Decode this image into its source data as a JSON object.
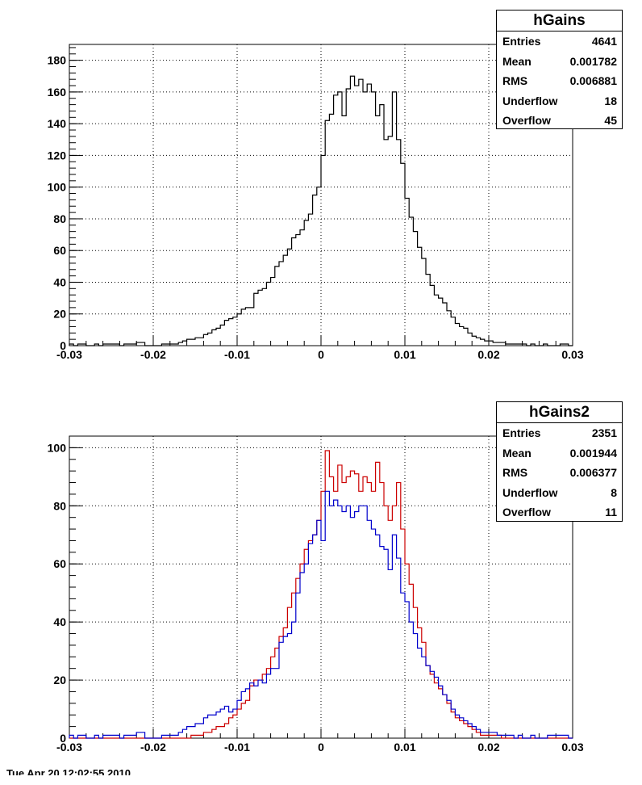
{
  "chart_data": [
    {
      "type": "histogram",
      "title": "",
      "xlabel": "",
      "ylabel": "",
      "xlim": [
        -0.03,
        0.03
      ],
      "ylim": [
        0,
        190
      ],
      "grid": true,
      "x_ticks": [
        "-0.03",
        "-0.02",
        "-0.01",
        "0",
        "0.01",
        "0.02",
        "0.03"
      ],
      "y_ticks": [
        "0",
        "20",
        "40",
        "60",
        "80",
        "100",
        "120",
        "140",
        "160",
        "180"
      ],
      "bins": 120,
      "series": [
        {
          "color": "#000000",
          "values": [
            1,
            0,
            1,
            1,
            0,
            0,
            1,
            0,
            1,
            1,
            1,
            1,
            0,
            1,
            1,
            1,
            2,
            2,
            0,
            0,
            0,
            0,
            1,
            1,
            1,
            1,
            2,
            3,
            4,
            4,
            5,
            5,
            7,
            8,
            10,
            11,
            13,
            16,
            17,
            18,
            20,
            23,
            24,
            24,
            33,
            35,
            36,
            40,
            43,
            50,
            53,
            57,
            61,
            68,
            70,
            73,
            79,
            83,
            95,
            100,
            120,
            142,
            146,
            158,
            160,
            145,
            162,
            170,
            164,
            168,
            160,
            165,
            160,
            145,
            152,
            130,
            132,
            160,
            130,
            115,
            93,
            81,
            72,
            62,
            55,
            45,
            38,
            32,
            30,
            27,
            22,
            18,
            14,
            12,
            11,
            8,
            6,
            5,
            4,
            3,
            3,
            2,
            2,
            2,
            1,
            1,
            1,
            1,
            1,
            0,
            1,
            0,
            0,
            1,
            0,
            0,
            0,
            1,
            1,
            0
          ]
        }
      ],
      "stats": {
        "title": "hGains",
        "rows": [
          {
            "label": "Entries",
            "value": "4641"
          },
          {
            "label": "Mean",
            "value": "0.001782"
          },
          {
            "label": "RMS",
            "value": "0.006881"
          },
          {
            "label": "Underflow",
            "value": "18"
          },
          {
            "label": "Overflow",
            "value": "45"
          }
        ]
      }
    },
    {
      "type": "histogram",
      "title": "",
      "xlabel": "",
      "ylabel": "",
      "xlim": [
        -0.03,
        0.03
      ],
      "ylim": [
        0,
        104
      ],
      "grid": true,
      "x_ticks": [
        "-0.03",
        "-0.02",
        "-0.01",
        "0",
        "0.01",
        "0.02",
        "0.03"
      ],
      "y_ticks": [
        "0",
        "20",
        "40",
        "60",
        "80",
        "100"
      ],
      "bins": 120,
      "series": [
        {
          "color": "#cc0000",
          "values": [
            0,
            0,
            0,
            0,
            0,
            0,
            0,
            0,
            0,
            0,
            0,
            0,
            0,
            0,
            0,
            0,
            0,
            0,
            0,
            0,
            0,
            0,
            0,
            0,
            0,
            0,
            0,
            0,
            0,
            1,
            1,
            1,
            2,
            2,
            3,
            4,
            4,
            5,
            7,
            8,
            10,
            12,
            13,
            18,
            20,
            20,
            22,
            24,
            28,
            31,
            35,
            38,
            45,
            50,
            55,
            60,
            65,
            68,
            70,
            75,
            85,
            99,
            90,
            85,
            94,
            88,
            90,
            92,
            91,
            85,
            90,
            88,
            85,
            95,
            88,
            80,
            75,
            80,
            88,
            72,
            60,
            53,
            45,
            38,
            33,
            25,
            22,
            19,
            17,
            15,
            12,
            9,
            7,
            6,
            5,
            4,
            3,
            2,
            1,
            1,
            1,
            1,
            1,
            0,
            0,
            0,
            0,
            0,
            0,
            0,
            0,
            0,
            0,
            0,
            0,
            0,
            0,
            0,
            0,
            0
          ]
        },
        {
          "color": "#0000cc",
          "values": [
            1,
            0,
            1,
            1,
            0,
            0,
            1,
            0,
            1,
            1,
            1,
            1,
            0,
            1,
            1,
            1,
            2,
            2,
            0,
            0,
            0,
            0,
            1,
            1,
            1,
            1,
            2,
            3,
            4,
            4,
            5,
            5,
            7,
            8,
            8,
            9,
            10,
            11,
            9,
            10,
            13,
            16,
            17,
            19,
            18,
            20,
            19,
            22,
            24,
            24,
            33,
            35,
            36,
            40,
            50,
            57,
            60,
            67,
            70,
            75,
            68,
            85,
            80,
            82,
            80,
            78,
            80,
            76,
            78,
            80,
            80,
            75,
            72,
            70,
            66,
            65,
            58,
            70,
            62,
            50,
            47,
            40,
            36,
            31,
            28,
            25,
            23,
            21,
            18,
            15,
            13,
            10,
            8,
            7,
            6,
            5,
            4,
            3,
            2,
            2,
            2,
            2,
            1,
            1,
            1,
            1,
            0,
            1,
            0,
            0,
            1,
            0,
            0,
            0,
            1,
            1,
            1,
            1,
            1,
            0
          ]
        }
      ],
      "stats": {
        "title": "hGains2",
        "rows": [
          {
            "label": "Entries",
            "value": "2351"
          },
          {
            "label": "Mean",
            "value": "0.001944"
          },
          {
            "label": "RMS",
            "value": "0.006377"
          },
          {
            "label": "Underflow",
            "value": "8"
          },
          {
            "label": "Overflow",
            "value": "11"
          }
        ]
      }
    }
  ],
  "footer": "Tue Apr 20 12:02:55 2010"
}
